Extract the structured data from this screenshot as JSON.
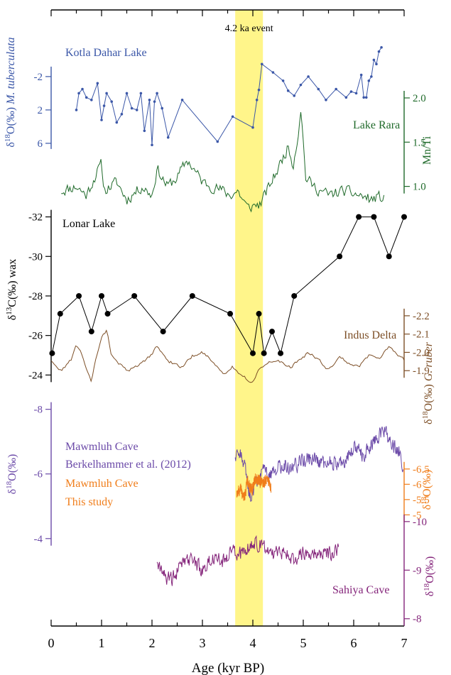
{
  "chart_data": {
    "type": "line",
    "title": "",
    "xlabel": "Age (kyr BP)",
    "x_ticks": [
      0,
      1,
      2,
      3,
      4,
      5,
      6,
      7
    ],
    "xlim": [
      0,
      7
    ],
    "event": {
      "label": "4.2 ka event",
      "x_range": [
        3.65,
        4.2
      ],
      "color": "#fff58a"
    },
    "panels": [
      {
        "id": "kotla",
        "name": "Kotla Dahar Lake",
        "color": "#3b57a8",
        "axis_side": "left",
        "ylabel_sup": "18",
        "ylabel_pre": "δ",
        "ylabel_post": "O(‰)",
        "ylabel_species": "M. tuberculata",
        "ticks": [
          "-2",
          "2",
          "6"
        ],
        "tick_values": [
          -2,
          2,
          6
        ],
        "ylim": [
          -6.5,
          7.2
        ],
        "inverted": true,
        "markers": true,
        "x": [
          0.5,
          0.55,
          0.62,
          0.7,
          0.8,
          0.92,
          1.0,
          1.05,
          1.1,
          1.2,
          1.3,
          1.4,
          1.5,
          1.6,
          1.7,
          1.78,
          1.85,
          1.95,
          2.0,
          2.05,
          2.1,
          2.2,
          2.32,
          2.6,
          3.3,
          3.6,
          4.0,
          4.08,
          4.12,
          4.18,
          4.4,
          4.6,
          4.7,
          4.82,
          4.95,
          5.1,
          5.3,
          5.45,
          5.65,
          5.85,
          5.95,
          6.05,
          6.15,
          6.2,
          6.25,
          6.3,
          6.35,
          6.4,
          6.45,
          6.5,
          6.55
        ],
        "y": [
          2.0,
          0.0,
          -0.5,
          0.5,
          0.8,
          -1.2,
          3.2,
          1.5,
          0.0,
          1.0,
          3.5,
          2.5,
          0.0,
          1.8,
          2.0,
          0.0,
          4.5,
          0.8,
          6.2,
          1.0,
          0.0,
          1.8,
          5.3,
          0.8,
          5.8,
          2.8,
          4.1,
          0.8,
          -0.4,
          -3.5,
          -2.5,
          -1.5,
          -0.3,
          0.3,
          -1.0,
          -2.0,
          -0.5,
          0.8,
          -0.5,
          0.5,
          -0.2,
          0.0,
          -2.2,
          0.5,
          0.5,
          -1.5,
          -2.0,
          -4.0,
          -3.5,
          -5.0,
          -5.5
        ]
      },
      {
        "id": "rara",
        "name": "Lake Rara",
        "color": "#1f6a2a",
        "axis_side": "right",
        "ylabel": "Mn/Ti",
        "ticks": [
          "1.0",
          "1.5",
          "2.0"
        ],
        "tick_values": [
          1.0,
          1.5,
          2.0
        ],
        "ylim": [
          0.74,
          2.08
        ],
        "inverted": false,
        "x": [
          0.2,
          0.5,
          0.7,
          0.9,
          1.0,
          1.05,
          1.3,
          1.5,
          1.8,
          2.0,
          2.1,
          2.3,
          2.5,
          2.7,
          3.0,
          3.4,
          3.55,
          3.7,
          3.9,
          4.0,
          4.15,
          4.5,
          4.7,
          4.8,
          4.9,
          4.95,
          5.05,
          5.2,
          5.5,
          5.8,
          6.1,
          6.35,
          6.5,
          6.6
        ],
        "y": [
          0.95,
          1.0,
          0.9,
          1.15,
          1.25,
          0.95,
          1.05,
          0.85,
          1.0,
          0.9,
          1.2,
          1.0,
          1.1,
          1.3,
          1.05,
          0.95,
          0.9,
          0.95,
          0.75,
          0.78,
          0.8,
          1.2,
          1.45,
          1.25,
          1.6,
          1.9,
          1.1,
          1.0,
          0.9,
          0.95,
          0.9,
          0.85,
          0.88,
          0.85
        ],
        "noise": 0.09,
        "density": 260,
        "seed": 11
      },
      {
        "id": "lonar",
        "name": "Lonar Lake",
        "color": "#000000",
        "axis_side": "left",
        "ylabel_sup": "13",
        "ylabel_pre": "δ",
        "ylabel_post": "C(‰) wax",
        "ticks": [
          "-32",
          "-30",
          "-28",
          "-26",
          "-24"
        ],
        "tick_values": [
          -32,
          -30,
          -28,
          -26,
          -24
        ],
        "ylim": [
          -32.2,
          -24.3
        ],
        "inverted": true,
        "markers": true,
        "x": [
          0.02,
          0.18,
          0.55,
          0.8,
          1.0,
          1.12,
          1.65,
          2.22,
          2.8,
          3.55,
          4.0,
          4.12,
          4.22,
          4.38,
          4.55,
          4.82,
          5.72,
          6.1,
          6.4,
          6.7,
          7.0
        ],
        "y": [
          -25.1,
          -27.1,
          -28.0,
          -26.2,
          -28.0,
          -27.1,
          -28.0,
          -26.2,
          -28.0,
          -27.1,
          -25.1,
          -27.1,
          -25.1,
          -26.2,
          -25.1,
          -28.0,
          -30.0,
          -32.0,
          -32.0,
          -30.0,
          -32.0
        ]
      },
      {
        "id": "indus",
        "name": "Indus Delta",
        "color": "#7d4f27",
        "axis_side": "right",
        "ylabel_sup": "18",
        "ylabel_pre": "δ",
        "ylabel_post": "O(‰)",
        "ylabel_species": "G. ruber",
        "ticks": [
          "-2.2",
          "-2.1",
          "-2.0",
          "-1.9"
        ],
        "tick_values": [
          -2.2,
          -2.1,
          -2.0,
          -1.9
        ],
        "ylim": [
          -2.25,
          -1.8
        ],
        "inverted": true,
        "x": [
          0.0,
          0.2,
          0.4,
          0.5,
          0.6,
          0.75,
          0.8,
          0.9,
          1.0,
          1.1,
          1.2,
          1.35,
          1.5,
          1.7,
          1.9,
          2.1,
          2.35,
          2.6,
          2.8,
          3.0,
          3.2,
          3.4,
          3.6,
          3.75,
          3.9,
          4.0,
          4.1,
          4.25,
          4.5,
          4.75,
          4.9,
          5.1,
          5.3,
          5.5,
          5.7,
          5.9,
          6.1,
          6.3,
          6.5,
          6.7,
          6.9,
          7.0
        ],
        "y": [
          -1.95,
          -1.9,
          -1.96,
          -2.04,
          -1.99,
          -1.88,
          -1.84,
          -1.98,
          -2.08,
          -2.12,
          -1.98,
          -1.94,
          -1.9,
          -1.92,
          -1.96,
          -2.03,
          -1.95,
          -1.92,
          -1.98,
          -2.0,
          -1.95,
          -1.88,
          -1.92,
          -1.88,
          -1.85,
          -1.84,
          -1.9,
          -1.94,
          -1.95,
          -1.92,
          -1.95,
          -2.0,
          -1.96,
          -1.9,
          -1.98,
          -1.94,
          -1.92,
          -1.98,
          -1.96,
          -2.03,
          -1.98,
          -1.96
        ],
        "noise": 0.012,
        "density": 230,
        "seed": 23
      },
      {
        "id": "mawmluh_b",
        "name": "Mawmluh Cave",
        "name2": "Berkelhammer et al. (2012)",
        "color": "#6b4aa8",
        "axis_side": "left",
        "ylabel_sup": "18",
        "ylabel_pre": "δ",
        "ylabel_post": "O(‰)",
        "ticks": [
          "-8",
          "-6",
          "-4"
        ],
        "tick_values": [
          -8,
          -6,
          -4
        ],
        "ylim": [
          -8.3,
          -3.6
        ],
        "inverted": true,
        "x": [
          3.65,
          3.75,
          3.85,
          3.95,
          4.05,
          4.2,
          4.4,
          4.6,
          4.8,
          5.0,
          5.2,
          5.4,
          5.6,
          5.8,
          6.0,
          6.2,
          6.4,
          6.6,
          6.75,
          6.9,
          6.98
        ],
        "y": [
          -6.4,
          -6.6,
          -6.2,
          -5.2,
          -5.7,
          -6.1,
          -6.0,
          -6.3,
          -6.2,
          -6.4,
          -6.5,
          -6.3,
          -6.4,
          -6.3,
          -6.8,
          -6.6,
          -7.0,
          -7.4,
          -6.9,
          -6.7,
          -6.2
        ],
        "noise": 0.33,
        "density": 360,
        "seed": 37
      },
      {
        "id": "mawmluh_t",
        "name": "Mawmluh Cave",
        "name2": "This study",
        "color": "#f07d1a",
        "axis_side": "right",
        "ylabel_sup": "18",
        "ylabel_pre": "δ",
        "ylabel_post": "O(‰)",
        "ticks": [
          "-6.5",
          "-6",
          "-5.5",
          "-5"
        ],
        "tick_values": [
          -6.5,
          -6,
          -5.5,
          -5
        ],
        "ylim": [
          -6.75,
          -4.8
        ],
        "inverted": true,
        "x": [
          3.68,
          3.75,
          3.82,
          3.9,
          3.98,
          4.05,
          4.12,
          4.2,
          4.28,
          4.36
        ],
        "y": [
          -5.7,
          -5.9,
          -5.5,
          -6.1,
          -5.8,
          -6.2,
          -6.1,
          -6.0,
          -6.2,
          -5.9
        ],
        "noise": 0.28,
        "density": 320,
        "seed": 51
      },
      {
        "id": "sahiya",
        "name": "Sahiya Cave",
        "color": "#84247a",
        "axis_side": "right",
        "ylabel_sup": "18",
        "ylabel_pre": "δ",
        "ylabel_post": "O(‰)",
        "ticks": [
          "-10",
          "-9",
          "-8"
        ],
        "tick_values": [
          -10,
          -9,
          -8
        ],
        "ylim": [
          -10.1,
          -7.85
        ],
        "inverted": true,
        "x": [
          2.1,
          2.2,
          2.4,
          2.6,
          2.8,
          3.0,
          3.2,
          3.4,
          3.6,
          3.8,
          4.0,
          4.2,
          4.4,
          4.6,
          4.8,
          5.0,
          5.2,
          5.4,
          5.6,
          5.7
        ],
        "y": [
          -9.1,
          -8.9,
          -8.8,
          -9.1,
          -9.2,
          -9.0,
          -9.3,
          -9.2,
          -9.4,
          -9.3,
          -9.6,
          -9.5,
          -9.3,
          -9.4,
          -9.2,
          -9.4,
          -9.3,
          -9.4,
          -9.3,
          -9.4
        ],
        "noise": 0.22,
        "density": 300,
        "seed": 67
      }
    ]
  }
}
